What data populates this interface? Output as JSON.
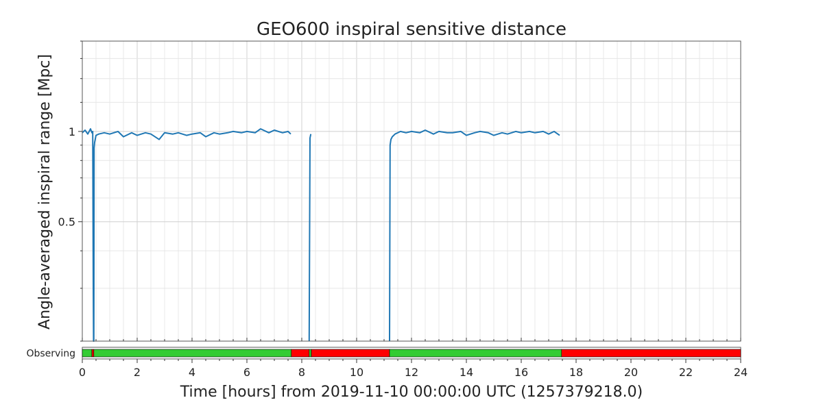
{
  "chart_data": {
    "type": "line",
    "title": "GEO600 inspiral sensitive distance",
    "xlabel": "Time [hours] from 2019-11-10 00:00:00 UTC (1257379218.0)",
    "ylabel": "Angle-averaged inspiral range [Mpc]",
    "xlim": [
      0,
      24
    ],
    "ylim": [
      0.2,
      2.0
    ],
    "yscale": "log",
    "grid": true,
    "x_ticks": [
      0,
      2,
      4,
      6,
      8,
      10,
      12,
      14,
      16,
      18,
      20,
      22,
      24
    ],
    "x_tick_labels": [
      "0",
      "2",
      "4",
      "6",
      "8",
      "10",
      "12",
      "14",
      "16",
      "18",
      "20",
      "22",
      "24"
    ],
    "y_ticks": [
      0.5,
      1
    ],
    "y_tick_labels": [
      "0.5",
      "1"
    ],
    "series": [
      {
        "color": "#1f77b4",
        "segments": [
          {
            "x": [
              0.0,
              0.1,
              0.2,
              0.3,
              0.35,
              0.38,
              0.4,
              0.41,
              0.42,
              0.43,
              0.45,
              0.5,
              0.6,
              0.8,
              1.0,
              1.3,
              1.5,
              1.8,
              2.0,
              2.3,
              2.5,
              2.8,
              3.0,
              3.3,
              3.5,
              3.8,
              4.0,
              4.3,
              4.5,
              4.8,
              5.0,
              5.3,
              5.5,
              5.8,
              6.0,
              6.3,
              6.5,
              6.8,
              7.0,
              7.3,
              7.5,
              7.6
            ],
            "y": [
              0.99,
              1.01,
              0.98,
              1.02,
              0.99,
              1.0,
              0.3,
              0.2,
              0.2,
              0.88,
              0.92,
              0.97,
              0.98,
              0.99,
              0.98,
              1.0,
              0.96,
              0.99,
              0.97,
              0.99,
              0.98,
              0.94,
              0.99,
              0.98,
              0.99,
              0.97,
              0.98,
              0.99,
              0.96,
              0.99,
              0.98,
              0.99,
              1.0,
              0.99,
              1.0,
              0.99,
              1.02,
              0.99,
              1.01,
              0.99,
              1.0,
              0.98
            ]
          },
          {
            "x": [
              8.27,
              8.3,
              8.33
            ],
            "y": [
              0.2,
              0.95,
              0.98
            ]
          },
          {
            "x": [
              11.2,
              11.22,
              11.25,
              11.3,
              11.4,
              11.6,
              11.8,
              12.0,
              12.3,
              12.5,
              12.8,
              13.0,
              13.3,
              13.5,
              13.8,
              14.0,
              14.3,
              14.5,
              14.8,
              15.0,
              15.3,
              15.5,
              15.8,
              16.0,
              16.3,
              16.5,
              16.8,
              17.0,
              17.2,
              17.4
            ],
            "y": [
              0.2,
              0.9,
              0.94,
              0.96,
              0.98,
              1.0,
              0.99,
              1.0,
              0.99,
              1.01,
              0.98,
              1.0,
              0.99,
              0.99,
              1.0,
              0.97,
              0.99,
              1.0,
              0.99,
              0.97,
              0.99,
              0.98,
              1.0,
              0.99,
              1.0,
              0.99,
              1.0,
              0.98,
              1.0,
              0.97
            ]
          }
        ]
      }
    ],
    "segment_bar": {
      "label": "Observing",
      "segments": [
        {
          "start": 0.0,
          "end": 0.35,
          "state": "on",
          "color": "#33cc33"
        },
        {
          "start": 0.35,
          "end": 0.42,
          "state": "off",
          "color": "#ff0000"
        },
        {
          "start": 0.42,
          "end": 7.62,
          "state": "on",
          "color": "#33cc33"
        },
        {
          "start": 7.62,
          "end": 8.27,
          "state": "off",
          "color": "#ff0000"
        },
        {
          "start": 8.27,
          "end": 8.35,
          "state": "on",
          "color": "#33cc33"
        },
        {
          "start": 8.35,
          "end": 11.2,
          "state": "off",
          "color": "#ff0000"
        },
        {
          "start": 11.2,
          "end": 17.47,
          "state": "on",
          "color": "#33cc33"
        },
        {
          "start": 17.47,
          "end": 24.0,
          "state": "off",
          "color": "#ff0000"
        }
      ]
    }
  }
}
